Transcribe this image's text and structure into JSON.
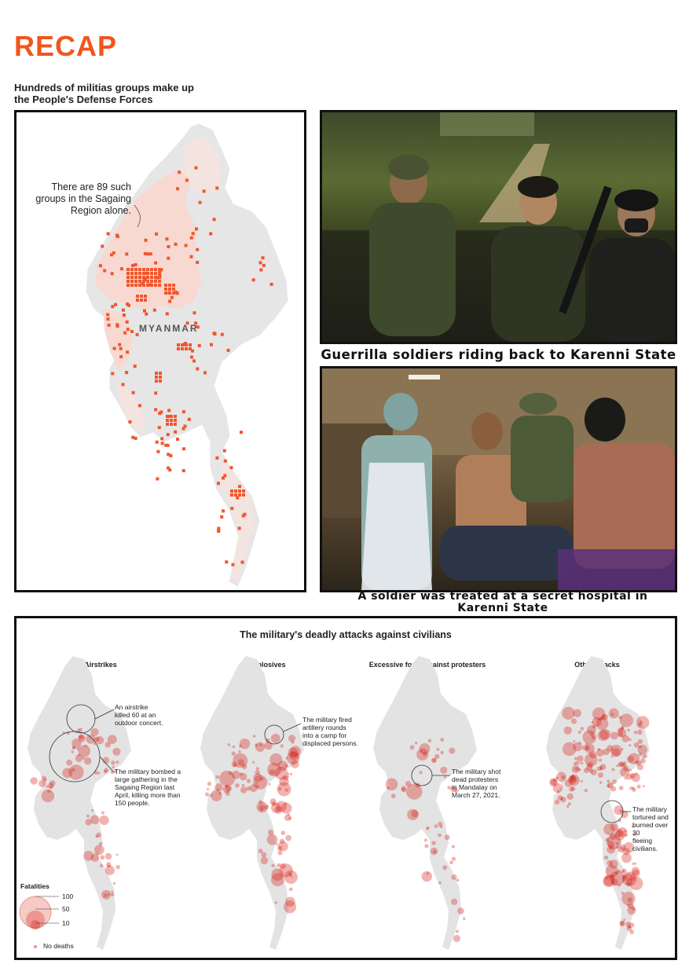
{
  "header": {
    "title": "RECAP",
    "intro_line1": "Hundreds of militias groups make up",
    "intro_line2": "the People's Defense Forces"
  },
  "militia_map": {
    "callout_line1": "There are 89 such",
    "callout_line2": "groups in the Sagaing",
    "callout_line3": "Region alone.",
    "country_label": "MYANMAR",
    "dot_color": "#f0562d",
    "land_color": "#e6e6e6",
    "region_color": "#f7d9d2"
  },
  "photos": [
    {
      "caption": "Guerrilla soldiers riding back to Karenni State",
      "subject": "soldiers-in-truck"
    },
    {
      "caption_line1": "A soldier was treated at a secret hospital in",
      "caption_line2": "Karenni State",
      "subject": "field-hospital"
    }
  ],
  "attacks": {
    "title": "The military's deadly attacks against civilians",
    "panels": [
      {
        "title": "Airstrikes"
      },
      {
        "title": "Explosives"
      },
      {
        "title": "Excessive force against protesters"
      },
      {
        "title": "Other attacks"
      }
    ],
    "annotations": {
      "airstrike_concert": [
        "An airstrike",
        "killed 60 at an",
        "outdoor concert."
      ],
      "airstrike_sagaing": [
        "The military bombed a",
        "large gathering in the",
        "Sagaing Region last",
        "April, killing more than",
        "150 people."
      ],
      "explosives_camp": [
        "The military fired",
        "artillery rounds",
        "into a camp for",
        "displaced persons."
      ],
      "protesters_mandalay": [
        "The military shot",
        "dead protesters",
        "in Mandalay on",
        "March 27, 2021."
      ],
      "other_tortured": [
        "The military",
        "tortured and",
        "burned over 30",
        "fleeing civilians."
      ]
    },
    "legend": {
      "title": "Fatalities",
      "levels": [
        "100",
        "50",
        "10"
      ],
      "none_label": "No deaths"
    },
    "dot_color": "#d8261c"
  }
}
